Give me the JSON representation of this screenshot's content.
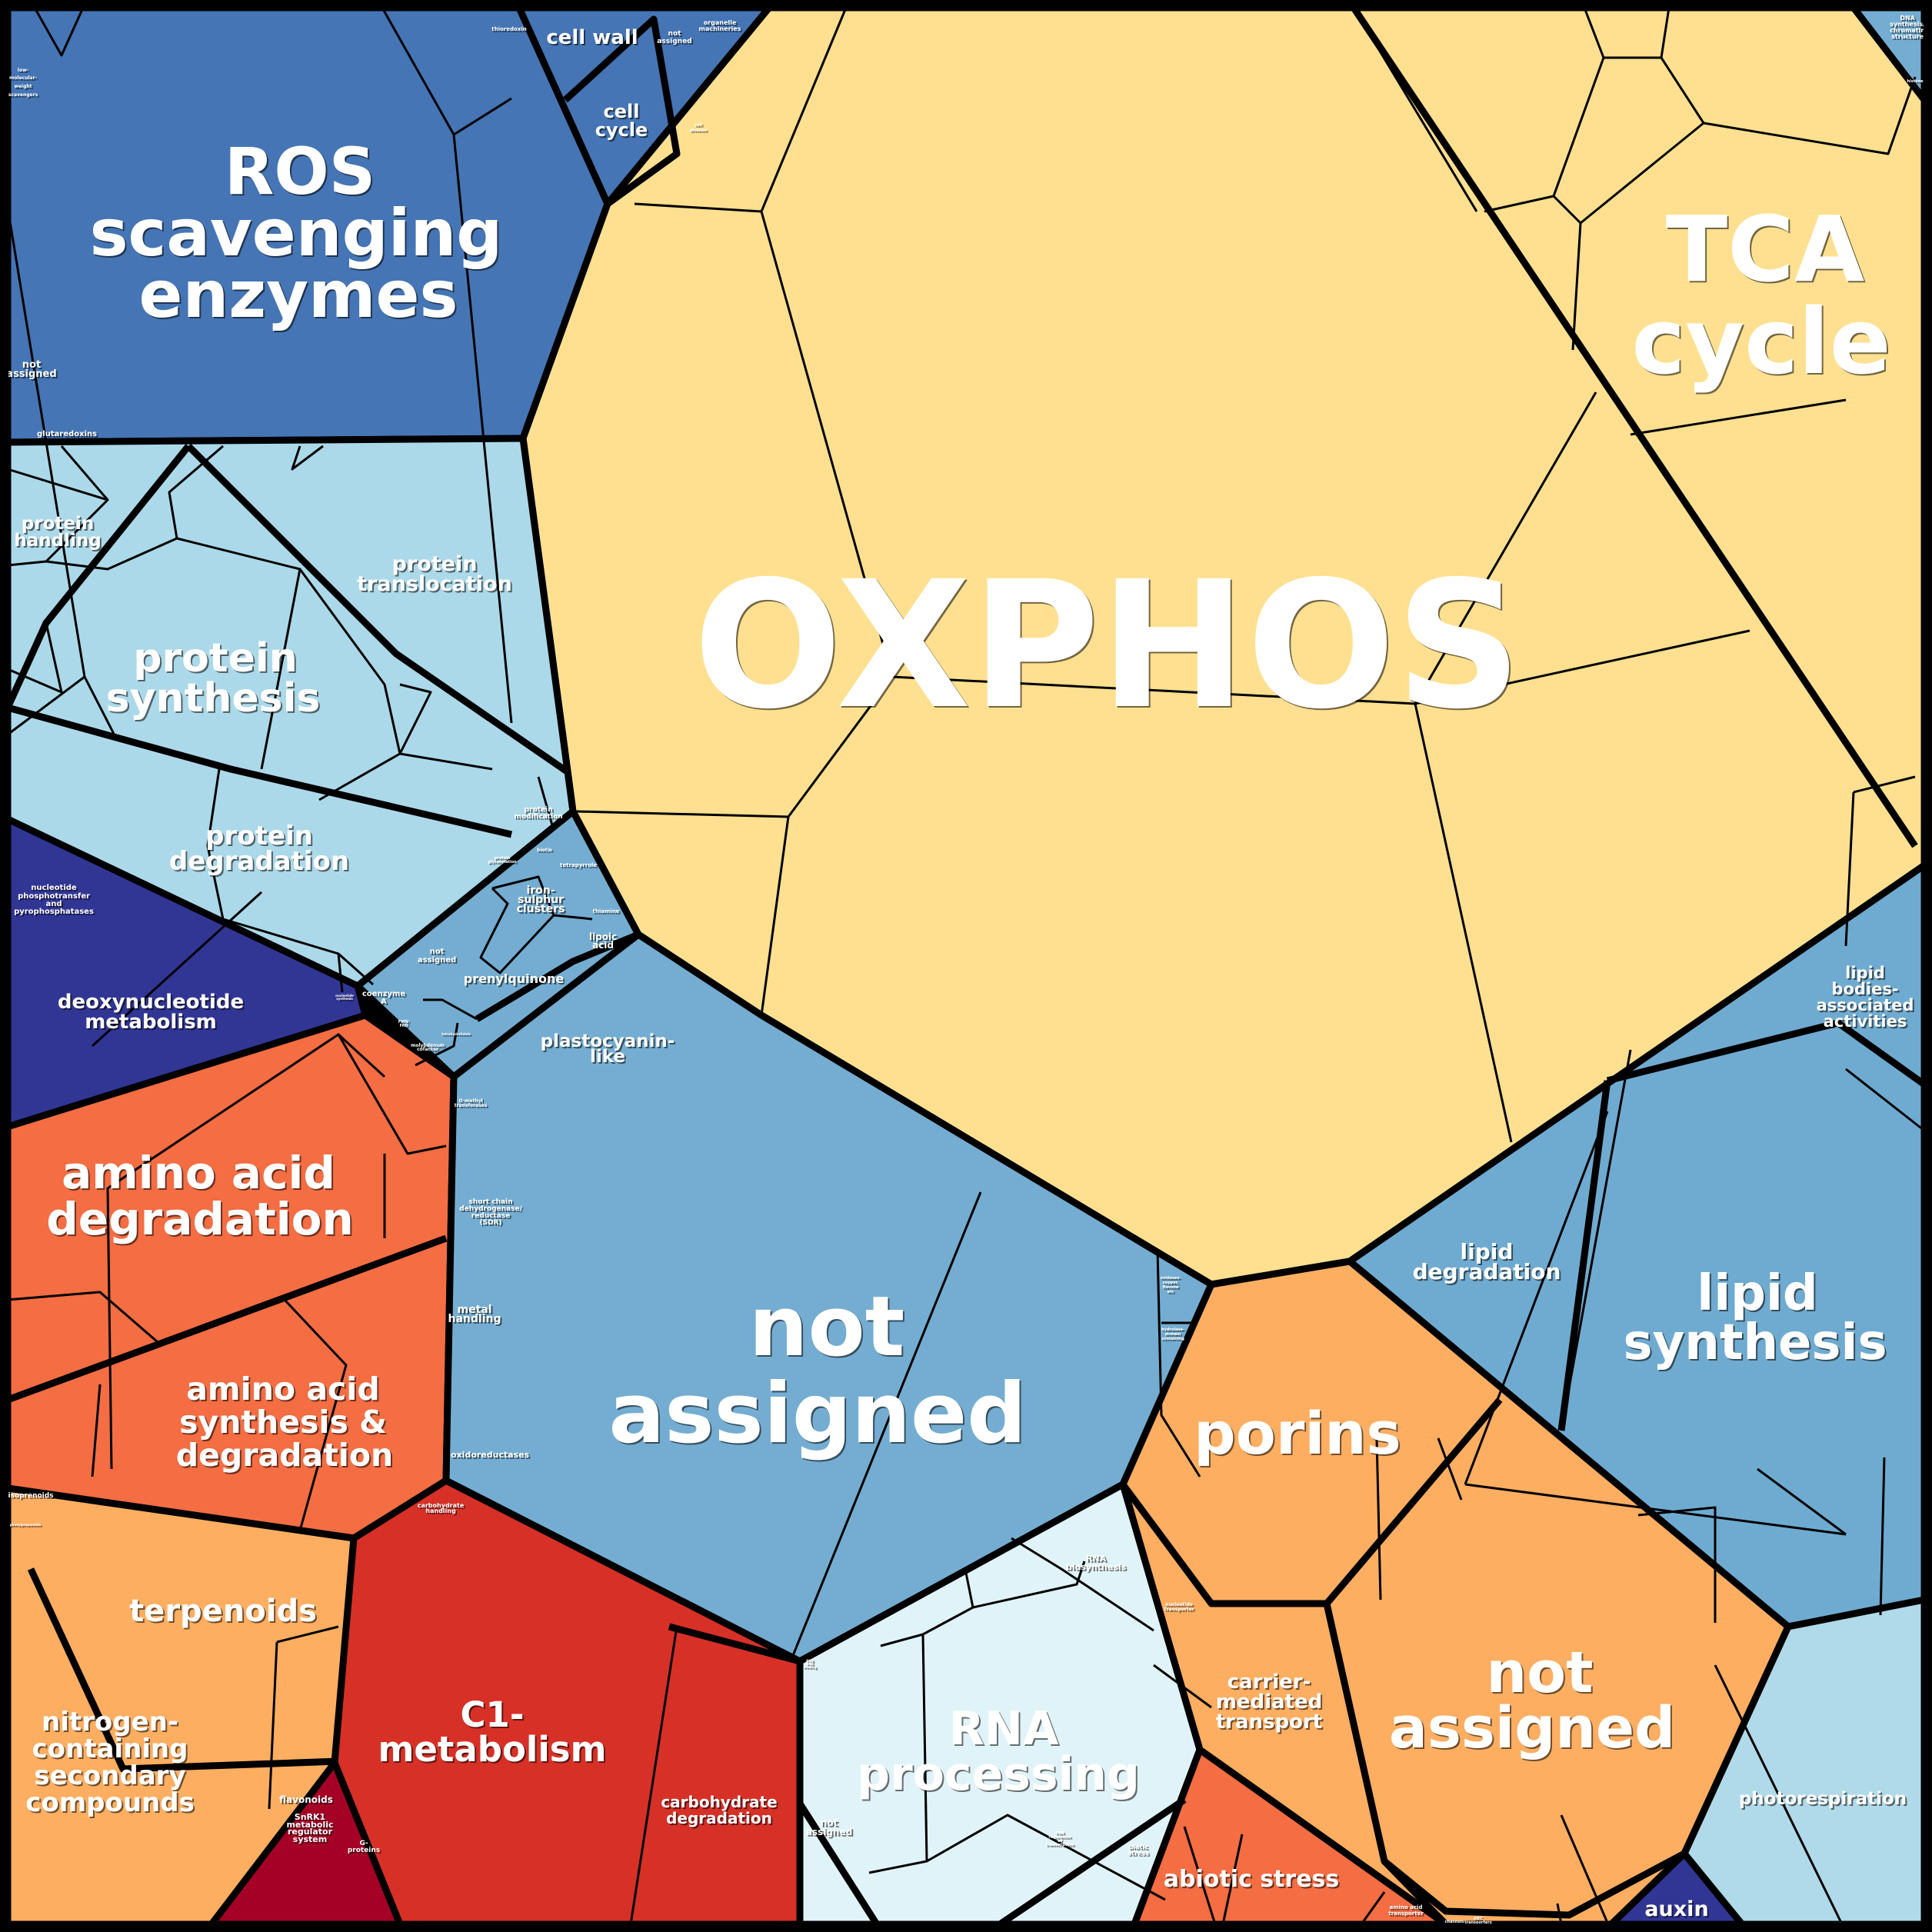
{
  "palette": {
    "ros_blue": "#4575b4",
    "protein_lightblue": "#abd9e9",
    "cofactor_blue": "#74add1",
    "nucleotide_darkblue": "#313695",
    "aminoacid_orange": "#f46d43",
    "secondary_lightorange": "#fdae61",
    "c1_red": "#d73027",
    "snrk_darkred": "#a50026",
    "energy_yellow": "#fee090",
    "rna_paleblue": "#e0f3f8",
    "lipid_blue": "#6fabd0",
    "transport_orange": "#fdae61",
    "abiotic_orange": "#f46d43",
    "photo_lightblue": "#b0dae9"
  },
  "labels": {
    "ros": [
      "ROS",
      "scavenging",
      "enzymes"
    ],
    "cell_wall": [
      "cell wall"
    ],
    "cell_cycle": [
      "cell",
      "cycle"
    ],
    "na_top": [
      "not",
      "assigned"
    ],
    "organelle": [
      "organelle",
      "machineries"
    ],
    "cell_division": [
      "cell",
      "division"
    ],
    "thioredoxin": [
      "thioredoxin"
    ],
    "lmw": [
      "low-",
      "molecular-",
      "weight",
      "scavengers"
    ],
    "na_ros": [
      "not",
      "assigned"
    ],
    "glutaredoxins": [
      "glutaredoxins"
    ],
    "dna": [
      "DNA",
      "synthesis/",
      "chromatin",
      "structure"
    ],
    "histone": [
      "histone"
    ],
    "oxphos": [
      "OXPHOS"
    ],
    "tca": [
      "TCA",
      "cycle"
    ],
    "protein_handling": [
      "protein",
      "handling"
    ],
    "protein_translocation": [
      "protein",
      "translocation"
    ],
    "protein_synthesis": [
      "protein",
      "synthesis"
    ],
    "protein_degradation": [
      "protein",
      "degradation"
    ],
    "protein_modification": [
      "protein",
      "modification"
    ],
    "protein_glycosylation": [
      "protein",
      "glycosylation"
    ],
    "biotin": [
      "biotin"
    ],
    "tetrapyrrole": [
      "tetrapyrrole"
    ],
    "iron_sulphur": [
      "iron-",
      "sulphur",
      "clusters"
    ],
    "thiamine": [
      "thiamine"
    ],
    "lipoic": [
      "lipoic",
      "acid"
    ],
    "na_cofactor": [
      "not",
      "assigned"
    ],
    "prenylquinone": [
      "prenylquinone"
    ],
    "coenzyme_a": [
      "coenzyme",
      "A"
    ],
    "fmn_fad": [
      "FMN/",
      "FAD"
    ],
    "molybdenum": [
      "molybdenum",
      "cofactor"
    ],
    "tetrahydrofolate": [
      "tetrahydrofolate"
    ],
    "plastocyanin": [
      "plastocyanin-",
      "like"
    ],
    "o_methyl": [
      "O-methyl",
      "transferases"
    ],
    "sdr": [
      "short chain",
      "dehydrogenase/",
      "reductase",
      "(SDR)"
    ],
    "metal_handling": [
      "metal",
      "handling"
    ],
    "oxidoreductases": [
      "oxidoreductases"
    ],
    "na_big": [
      "not",
      "assigned"
    ],
    "hydrolase": [
      "hydrolase-",
      "domain",
      "containing"
    ],
    "oxidases": [
      "oxidases-",
      "copper,",
      "flavone",
      "etc"
    ],
    "lipid_bodies": [
      "lipid",
      "bodies-",
      "associated",
      "activities"
    ],
    "lipid_degradation": [
      "lipid",
      "degradation"
    ],
    "lipid_synthesis": [
      "lipid",
      "synthesis"
    ],
    "porins": [
      "porins"
    ],
    "na_transport": [
      "not",
      "assigned"
    ],
    "carrier": [
      "carrier-",
      "mediated",
      "transport"
    ],
    "nucleotide_transporter": [
      "nucleotide",
      "transporter"
    ],
    "amino_acid_transporter": [
      "amino acid",
      "transporter"
    ],
    "channels": [
      "channels"
    ],
    "abc": [
      "ABC",
      "transporters"
    ],
    "rna_processing": [
      "RNA",
      "processing"
    ],
    "rna_biosynthesis": [
      "RNA",
      "biosynthesis"
    ],
    "rna_binding": [
      "RNA",
      "RNA",
      "binding"
    ],
    "rna_regulation": [
      "RNA",
      "regulation",
      "of",
      "transcription"
    ],
    "na_rna": [
      "not",
      "assigned"
    ],
    "abiotic": [
      "abiotic stress"
    ],
    "biotic": [
      "biotic",
      "stress"
    ],
    "auxin": [
      "auxin"
    ],
    "photorespiration": [
      "photorespiration"
    ],
    "aa_degradation": [
      "amino acid",
      "degradation"
    ],
    "aa_synthesis": [
      "amino acid",
      "synthesis &",
      "degradation"
    ],
    "deoxynucleotide": [
      "deoxynucleotide",
      "metabolism"
    ],
    "nucleotide_pp": [
      "nucleotide",
      "phosphotransfer",
      "and",
      "pyrophosphatases"
    ],
    "nucleotide_synthesis": [
      "nucleotide",
      "synthesis"
    ],
    "terpenoids": [
      "terpenoids"
    ],
    "nitrogen": [
      "nitrogen-",
      "containing",
      "secondary",
      "compounds"
    ],
    "flavonoids": [
      "flavonoids"
    ],
    "isoprenoids": [
      "isoprenoids"
    ],
    "phenylpropanoids": [
      "phenylpropanoids"
    ],
    "c1": [
      "C1-",
      "metabolism"
    ],
    "carb_degradation": [
      "carbohydrate",
      "degradation"
    ],
    "carb_handling": [
      "carbohydrate",
      "handling"
    ],
    "snrk1": [
      "SnRK1",
      "metabolic",
      "regulator",
      "system"
    ],
    "g_proteins": [
      "G-",
      "proteins"
    ]
  }
}
